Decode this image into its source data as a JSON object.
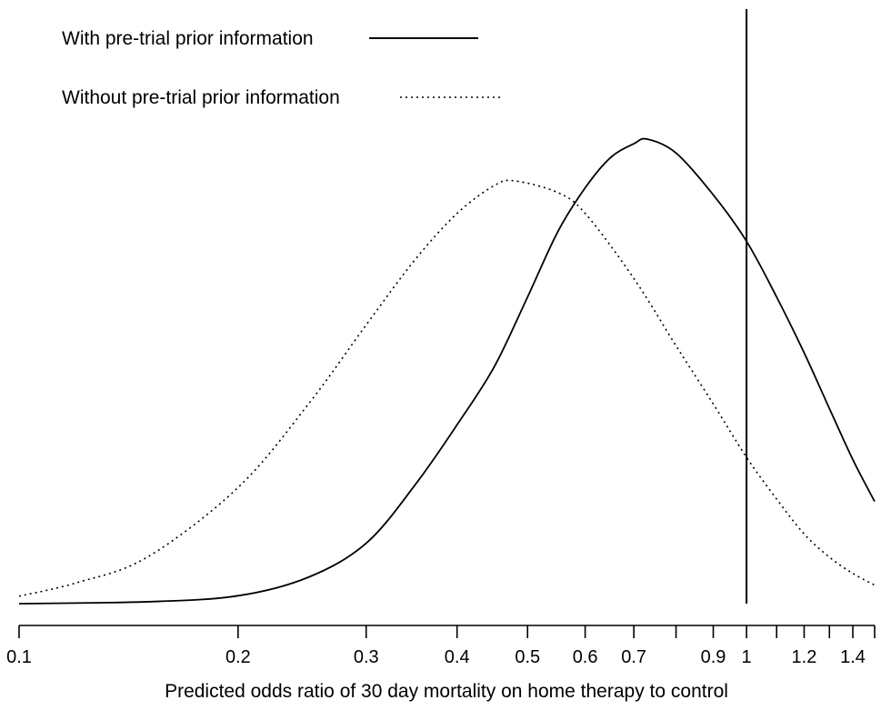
{
  "chart_data": {
    "type": "line",
    "title": "",
    "xlabel": "Predicted odds ratio of 30 day mortality on home therapy to control",
    "ylabel": "",
    "x_scale": "log",
    "xlim": [
      0.1,
      1.5
    ],
    "x_ticks": [
      0.1,
      0.2,
      0.3,
      0.4,
      0.5,
      0.6,
      0.7,
      0.8,
      0.9,
      1,
      1.1,
      1.2,
      1.3,
      1.4,
      1.5
    ],
    "x_tick_labels": [
      "0.1",
      "0.2",
      "0.3",
      "0.4",
      "0.5",
      "0.6",
      "0.7",
      "",
      "0.9",
      "1",
      "",
      "1.2",
      "",
      "1.4",
      ""
    ],
    "reference_line_x": 1,
    "grid": false,
    "legend_position": "top-left",
    "y_range": [
      0,
      1
    ],
    "series": [
      {
        "name": "With pre-trial prior information",
        "style": "solid",
        "x": [
          0.1,
          0.15,
          0.2,
          0.25,
          0.3,
          0.35,
          0.4,
          0.45,
          0.5,
          0.55,
          0.6,
          0.65,
          0.7,
          0.73,
          0.8,
          0.9,
          1.0,
          1.1,
          1.2,
          1.3,
          1.4,
          1.5
        ],
        "y": [
          0.0,
          0.004,
          0.017,
          0.057,
          0.13,
          0.255,
          0.385,
          0.51,
          0.66,
          0.8,
          0.895,
          0.96,
          0.99,
          1.0,
          0.97,
          0.88,
          0.78,
          0.66,
          0.54,
          0.42,
          0.31,
          0.22
        ]
      },
      {
        "name": "Without pre-trial prior information",
        "style": "dotted",
        "x": [
          0.1,
          0.12,
          0.15,
          0.2,
          0.25,
          0.3,
          0.35,
          0.4,
          0.45,
          0.48,
          0.55,
          0.6,
          0.7,
          0.8,
          0.9,
          1.0,
          1.1,
          1.2,
          1.3,
          1.4,
          1.5
        ],
        "y": [
          0.016,
          0.045,
          0.1,
          0.25,
          0.43,
          0.6,
          0.74,
          0.84,
          0.9,
          0.91,
          0.885,
          0.84,
          0.7,
          0.555,
          0.43,
          0.315,
          0.225,
          0.15,
          0.1,
          0.065,
          0.04
        ]
      }
    ]
  }
}
